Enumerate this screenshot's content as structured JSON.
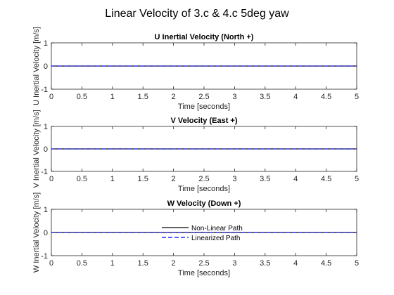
{
  "figure_title": "Linear Velocity of 3.c & 4.c 5deg yaw",
  "legend": [
    "Non-Linear Path",
    "Linearized Path"
  ],
  "colors": {
    "nonlinear": "#000000",
    "linearized": "#0000ff",
    "axis": "#262626"
  },
  "chart_data": [
    {
      "type": "line",
      "title": "U Inertial Velocity (North +)",
      "xlabel": "Time [seconds]",
      "ylabel": "U Inertial Velocity [m/s]",
      "xlim": [
        0,
        5
      ],
      "ylim": [
        -1,
        1
      ],
      "xticks": [
        "0",
        "0.5",
        "1",
        "1.5",
        "2",
        "2.5",
        "3",
        "3.5",
        "4",
        "4.5",
        "5"
      ],
      "yticks": [
        "-1",
        "0",
        "1"
      ],
      "series": [
        {
          "name": "Non-Linear Path",
          "style": "solid",
          "color": "#000000",
          "x": [
            0,
            5
          ],
          "y": [
            0,
            0
          ]
        },
        {
          "name": "Linearized Path",
          "style": "dashed",
          "color": "#0000ff",
          "x": [
            0,
            5
          ],
          "y": [
            0,
            0
          ]
        }
      ]
    },
    {
      "type": "line",
      "title": "V Velocity (East +)",
      "xlabel": "Time [seconds]",
      "ylabel": "V Inertial Velocity [m/s]",
      "xlim": [
        0,
        5
      ],
      "ylim": [
        -1,
        1
      ],
      "xticks": [
        "0",
        "0.5",
        "1",
        "1.5",
        "2",
        "2.5",
        "3",
        "3.5",
        "4",
        "4.5",
        "5"
      ],
      "yticks": [
        "-1",
        "0",
        "1"
      ],
      "series": [
        {
          "name": "Non-Linear Path",
          "style": "solid",
          "color": "#000000",
          "x": [
            0,
            5
          ],
          "y": [
            0,
            0
          ]
        },
        {
          "name": "Linearized Path",
          "style": "dashed",
          "color": "#0000ff",
          "x": [
            0,
            5
          ],
          "y": [
            0,
            0
          ]
        }
      ]
    },
    {
      "type": "line",
      "title": "W Velocity (Down +)",
      "xlabel": "Time [seconds]",
      "ylabel": "W Inertial Velocity [m/s]",
      "xlim": [
        0,
        5
      ],
      "ylim": [
        -1,
        1
      ],
      "xticks": [
        "0",
        "0.5",
        "1",
        "1.5",
        "2",
        "2.5",
        "3",
        "3.5",
        "4",
        "4.5",
        "5"
      ],
      "yticks": [
        "-1",
        "0",
        "1"
      ],
      "legend_location": "center",
      "series": [
        {
          "name": "Non-Linear Path",
          "style": "solid",
          "color": "#000000",
          "x": [
            0,
            5
          ],
          "y": [
            0,
            0
          ]
        },
        {
          "name": "Linearized Path",
          "style": "dashed",
          "color": "#0000ff",
          "x": [
            0,
            5
          ],
          "y": [
            0,
            0
          ]
        }
      ]
    }
  ]
}
